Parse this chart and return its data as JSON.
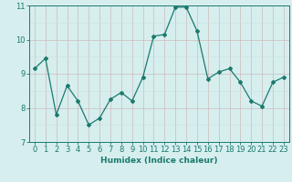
{
  "x": [
    0,
    1,
    2,
    3,
    4,
    5,
    6,
    7,
    8,
    9,
    10,
    11,
    12,
    13,
    14,
    15,
    16,
    17,
    18,
    19,
    20,
    21,
    22,
    23
  ],
  "y": [
    9.15,
    9.45,
    7.8,
    8.65,
    8.2,
    7.5,
    7.7,
    8.25,
    8.45,
    8.2,
    8.9,
    10.1,
    10.15,
    10.95,
    10.95,
    10.25,
    8.85,
    9.05,
    9.15,
    8.75,
    8.2,
    8.05,
    8.75,
    8.9
  ],
  "line_color": "#1a7a6e",
  "marker": "D",
  "markersize": 2,
  "linewidth": 0.9,
  "bg_color": "#d6eeee",
  "grid_color_minor": "#c8e0e0",
  "grid_color_major": "#ccbbbb",
  "xlim": [
    -0.5,
    23.5
  ],
  "ylim": [
    7,
    11
  ],
  "yticks": [
    7,
    8,
    9,
    10,
    11
  ],
  "xticks": [
    0,
    1,
    2,
    3,
    4,
    5,
    6,
    7,
    8,
    9,
    10,
    11,
    12,
    13,
    14,
    15,
    16,
    17,
    18,
    19,
    20,
    21,
    22,
    23
  ],
  "xlabel": "Humidex (Indice chaleur)",
  "xlabel_fontsize": 6.5,
  "tick_fontsize": 6
}
